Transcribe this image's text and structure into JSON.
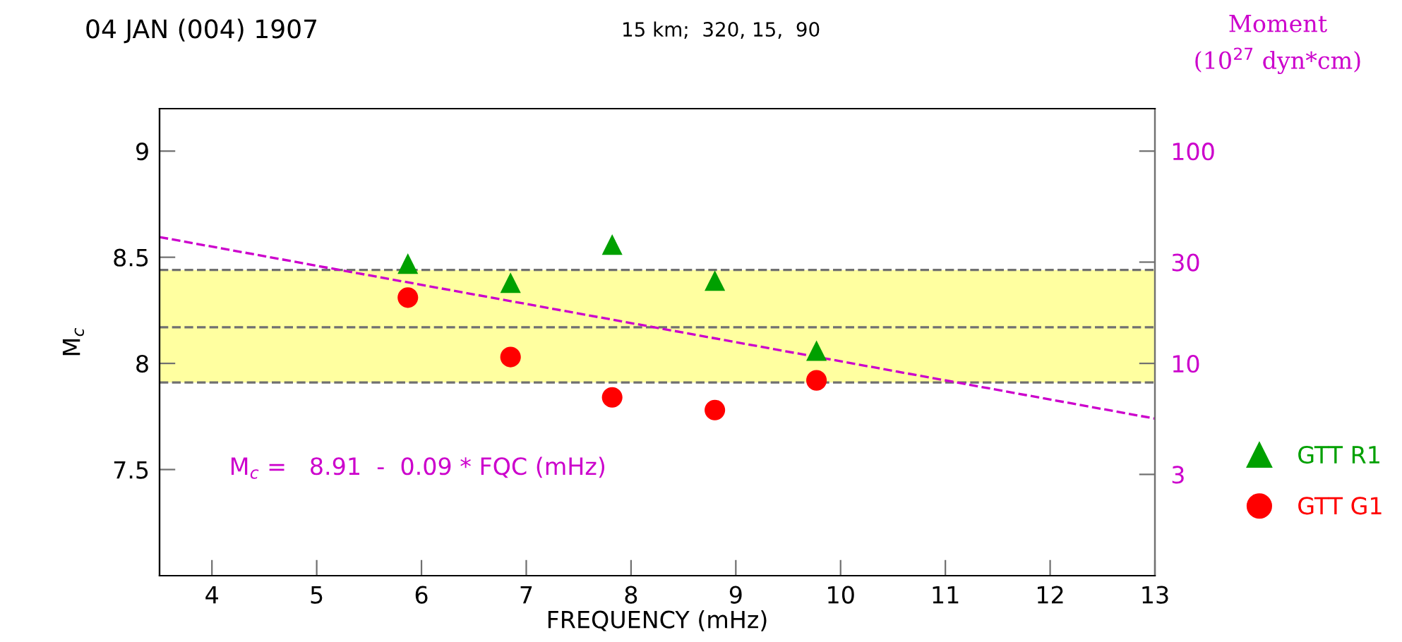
{
  "chart_data": {
    "type": "scatter",
    "title": "04 JAN (004) 1907",
    "subtitle": "15 km;  320, 15,  90",
    "xlabel": "FREQUENCY (mHz)",
    "ylabel": "M$_{c}$",
    "y2label": "Moment\n(10$^{27}$ dyn*cm)",
    "xlim": [
      3.5,
      13
    ],
    "xticks": [
      4,
      5,
      6,
      7,
      8,
      9,
      10,
      11,
      12,
      13
    ],
    "ylim": [
      7,
      9.2
    ],
    "yticks": [
      7.5,
      8,
      8.5,
      9
    ],
    "y2lim": [
      1,
      158.5
    ],
    "y2ticks": [
      3,
      10,
      30,
      100
    ],
    "log": "y2",
    "grid": false,
    "legend": "right",
    "series": [
      {
        "name": "GTT R1",
        "color": "#00a000",
        "marker": "triangle",
        "x": [
          5.87,
          6.85,
          7.82,
          8.8,
          9.77
        ],
        "values": [
          8.47,
          8.38,
          8.56,
          8.39,
          8.06
        ]
      },
      {
        "name": "GTT G1",
        "color": "#ff0000",
        "marker": "circle",
        "x": [
          5.87,
          6.85,
          7.82,
          8.8,
          9.77
        ],
        "values": [
          8.31,
          8.03,
          7.84,
          7.78,
          7.92
        ]
      },
      {
        "type": "line",
        "color": "#cc00cc",
        "line_style": "dashed",
        "x": [
          3.5,
          13
        ],
        "values": [
          8.595,
          7.74
        ]
      }
    ],
    "ref_lines": [
      {
        "axis": "y",
        "value": 8.44,
        "color": "#707070",
        "line_style": "dashed"
      },
      {
        "axis": "y",
        "value": 8.17,
        "color": "#707070",
        "line_style": "dashed"
      },
      {
        "axis": "y",
        "value": 7.91,
        "color": "#707070",
        "line_style": "dashed"
      }
    ],
    "bands": [
      {
        "axis": "y",
        "from": 7.91,
        "to": 8.44,
        "color": "#ffffa0"
      }
    ],
    "annotations": [
      "M$_{c}$ =   8.91  -  0.09 * FQC (mHz)"
    ]
  }
}
